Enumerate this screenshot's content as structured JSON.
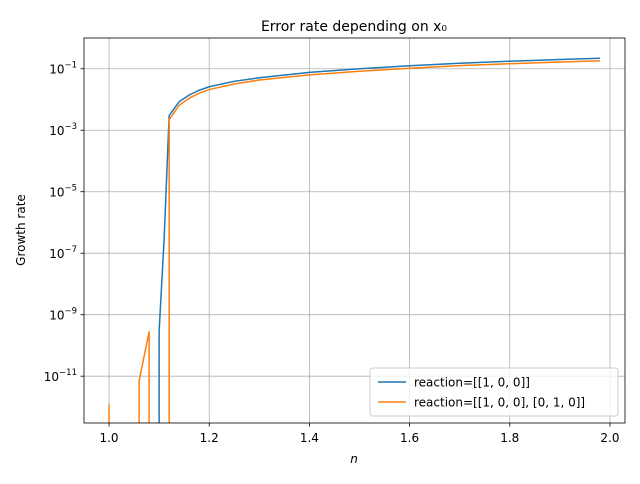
{
  "chart_data": {
    "type": "line",
    "title": "Error rate depending on x₀",
    "xlabel": "n",
    "ylabel": "Growth rate",
    "yscale": "log",
    "xlim": [
      0.95,
      2.03
    ],
    "ylim": [
      3e-13,
      1
    ],
    "grid": true,
    "legend_position": "lower-right",
    "xticks": [
      {
        "value": 1.0,
        "label": "1.0"
      },
      {
        "value": 1.2,
        "label": "1.2"
      },
      {
        "value": 1.4,
        "label": "1.4"
      },
      {
        "value": 1.6,
        "label": "1.6"
      },
      {
        "value": 1.8,
        "label": "1.8"
      },
      {
        "value": 2.0,
        "label": "2.0"
      }
    ],
    "yticks": [
      {
        "value": 1e-11,
        "base": "10",
        "exp": "−11"
      },
      {
        "value": 1e-09,
        "base": "10",
        "exp": "−9"
      },
      {
        "value": 1e-07,
        "base": "10",
        "exp": "−7"
      },
      {
        "value": 1e-05,
        "base": "10",
        "exp": "−5"
      },
      {
        "value": 0.001,
        "base": "10",
        "exp": "−3"
      },
      {
        "value": 0.1,
        "base": "10",
        "exp": "−1"
      }
    ],
    "series": [
      {
        "name": "reaction=[[1, 0, 0]]",
        "color": "#1f77b4",
        "segments": [
          [
            [
              1.1,
              1e-14
            ],
            [
              1.1,
              3e-10
            ],
            [
              1.11,
              3e-07
            ],
            [
              1.12,
              0.003
            ],
            [
              1.14,
              0.0085
            ],
            [
              1.16,
              0.014
            ],
            [
              1.18,
              0.02
            ],
            [
              1.2,
              0.026
            ],
            [
              1.25,
              0.039
            ],
            [
              1.3,
              0.051
            ],
            [
              1.4,
              0.076
            ],
            [
              1.5,
              0.1
            ],
            [
              1.6,
              0.125
            ],
            [
              1.7,
              0.151
            ],
            [
              1.8,
              0.175
            ],
            [
              1.9,
              0.2
            ],
            [
              1.98,
              0.22
            ]
          ]
        ]
      },
      {
        "name": "reaction=[[1, 0, 0], [0, 1, 0]]",
        "color": "#ff7f0e",
        "segments": [
          [
            [
              1.0,
              1e-14
            ],
            [
              1.0,
              1.2e-12
            ]
          ],
          [
            [
              1.06,
              1e-14
            ],
            [
              1.06,
              7e-12
            ],
            [
              1.08,
              2.8e-10
            ],
            [
              1.08,
              1e-14
            ]
          ],
          [
            [
              1.12,
              1e-14
            ],
            [
              1.12,
              0.0022
            ],
            [
              1.14,
              0.0065
            ],
            [
              1.16,
              0.011
            ],
            [
              1.18,
              0.016
            ],
            [
              1.2,
              0.021
            ],
            [
              1.25,
              0.032
            ],
            [
              1.3,
              0.043
            ],
            [
              1.4,
              0.063
            ],
            [
              1.5,
              0.083
            ],
            [
              1.6,
              0.104
            ],
            [
              1.7,
              0.126
            ],
            [
              1.8,
              0.146
            ],
            [
              1.9,
              0.166
            ],
            [
              1.98,
              0.18
            ]
          ]
        ]
      }
    ]
  }
}
